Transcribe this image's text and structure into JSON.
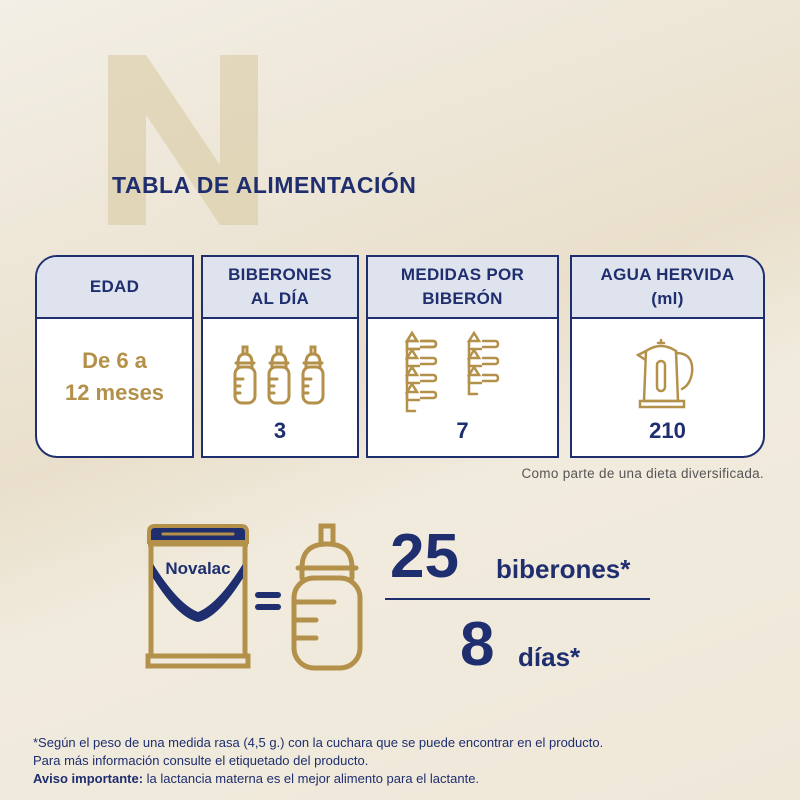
{
  "logo_letter": "N",
  "title": "TABLA DE ALIMENTACIÓN",
  "table": {
    "columns": [
      {
        "header_line1": "EDAD",
        "header_line2": "",
        "value_line1": "De 6 a",
        "value_line2": "12 meses"
      },
      {
        "header_line1": "BIBERONES",
        "header_line2": "AL DÍA",
        "value": "3",
        "icon": "baby-bottle-icon"
      },
      {
        "header_line1": "MEDIDAS POR",
        "header_line2": "BIBERÓN",
        "value": "7",
        "icon": "measuring-scoop-icon"
      },
      {
        "header_line1": "AGUA HERVIDA",
        "header_line2": "(ml)",
        "value": "210",
        "icon": "kettle-icon"
      }
    ],
    "note": "Como parte de una dieta diversificada."
  },
  "equation": {
    "brand": "Novalac",
    "numerator_value": "25",
    "numerator_unit": "biberones*",
    "denominator_value": "8",
    "denominator_unit": "días*"
  },
  "footer": {
    "line1": "*Según el peso de una medida rasa (4,5 g.) con la cuchara que se puede encontrar en el producto.",
    "line2": "Para más información consulte el etiquetado del producto.",
    "warning_label": "Aviso importante:",
    "warning_text": " la lactancia materna es el mejor alimento para el lactante."
  },
  "colors": {
    "navy": "#1e2e6e",
    "gold": "#b4914a",
    "header_bg": "#dfe3ee"
  }
}
